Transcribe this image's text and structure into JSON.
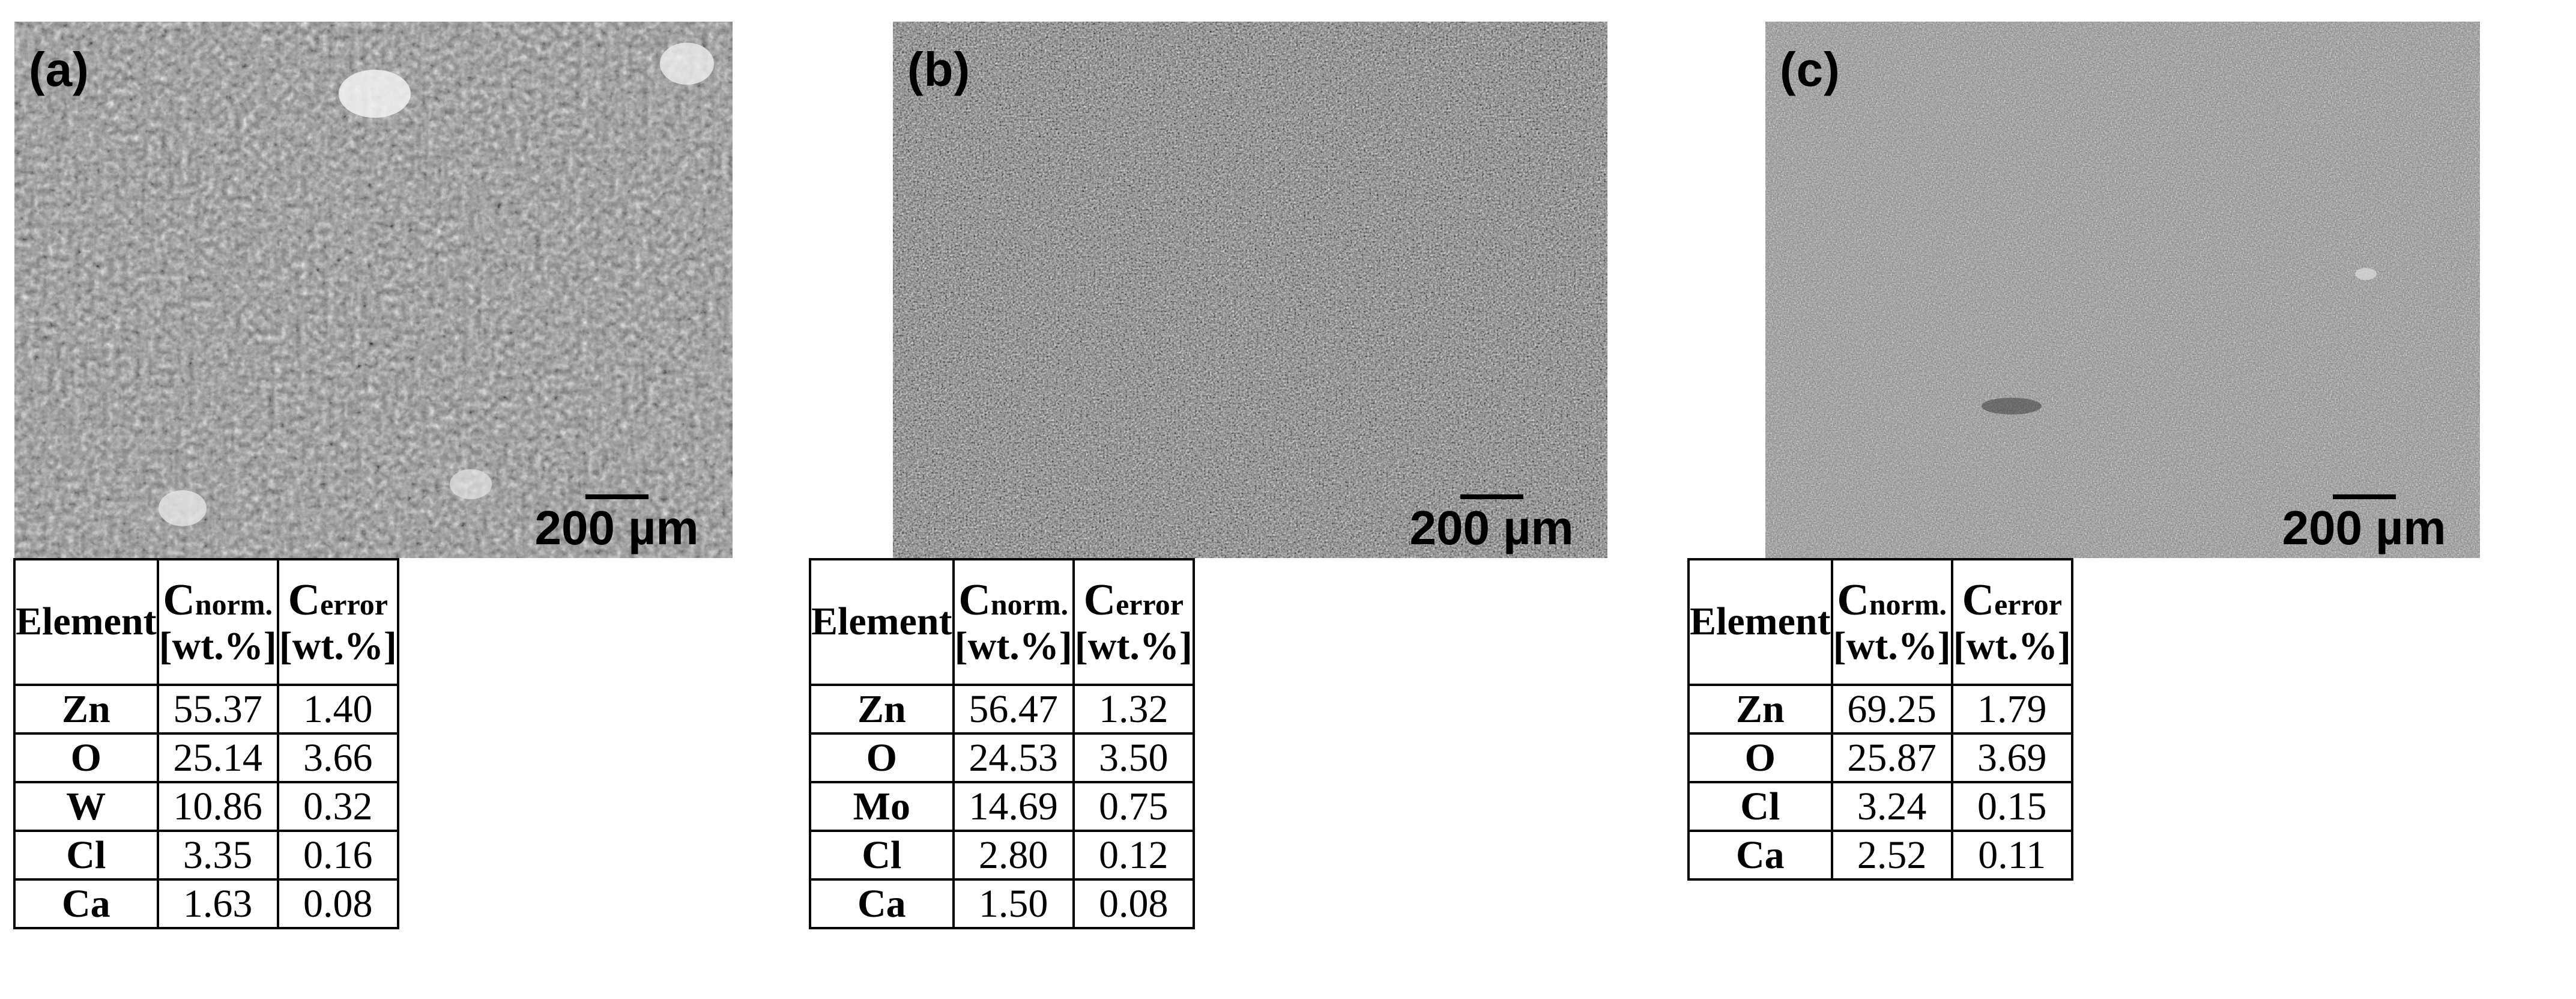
{
  "panels": [
    {
      "label": "(a)",
      "scale_bar": "200 µm",
      "table": {
        "headers": {
          "element": "Element",
          "c_norm_symbol": "C",
          "c_norm_sub": "norm.",
          "c_norm_unit": "[wt.%]",
          "c_error_symbol": "C",
          "c_error_sub": "error",
          "c_error_unit": "[wt.%]"
        },
        "rows": [
          {
            "element": "Zn",
            "c_norm": "55.37",
            "c_error": "1.40"
          },
          {
            "element": "O",
            "c_norm": "25.14",
            "c_error": "3.66"
          },
          {
            "element": "W",
            "c_norm": "10.86",
            "c_error": "0.32"
          },
          {
            "element": "Cl",
            "c_norm": "3.35",
            "c_error": "0.16"
          },
          {
            "element": "Ca",
            "c_norm": "1.63",
            "c_error": "0.08"
          }
        ]
      }
    },
    {
      "label": "(b)",
      "scale_bar": "200 µm",
      "table": {
        "headers": {
          "element": "Element",
          "c_norm_symbol": "C",
          "c_norm_sub": "norm.",
          "c_norm_unit": "[wt.%]",
          "c_error_symbol": "C",
          "c_error_sub": "error",
          "c_error_unit": "[wt.%]"
        },
        "rows": [
          {
            "element": "Zn",
            "c_norm": "56.47",
            "c_error": "1.32"
          },
          {
            "element": "O",
            "c_norm": "24.53",
            "c_error": "3.50"
          },
          {
            "element": "Mo",
            "c_norm": "14.69",
            "c_error": "0.75"
          },
          {
            "element": "Cl",
            "c_norm": "2.80",
            "c_error": "0.12"
          },
          {
            "element": "Ca",
            "c_norm": "1.50",
            "c_error": "0.08"
          }
        ]
      }
    },
    {
      "label": "(c)",
      "scale_bar": "200 µm",
      "table": {
        "headers": {
          "element": "Element",
          "c_norm_symbol": "C",
          "c_norm_sub": "norm.",
          "c_norm_unit": "[wt.%]",
          "c_error_symbol": "C",
          "c_error_sub": "error",
          "c_error_unit": "[wt.%]"
        },
        "rows": [
          {
            "element": "Zn",
            "c_norm": "69.25",
            "c_error": "1.79"
          },
          {
            "element": "O",
            "c_norm": "25.87",
            "c_error": "3.69"
          },
          {
            "element": "Cl",
            "c_norm": "3.24",
            "c_error": "0.15"
          },
          {
            "element": "Ca",
            "c_norm": "2.52",
            "c_error": "0.11"
          }
        ]
      }
    }
  ]
}
